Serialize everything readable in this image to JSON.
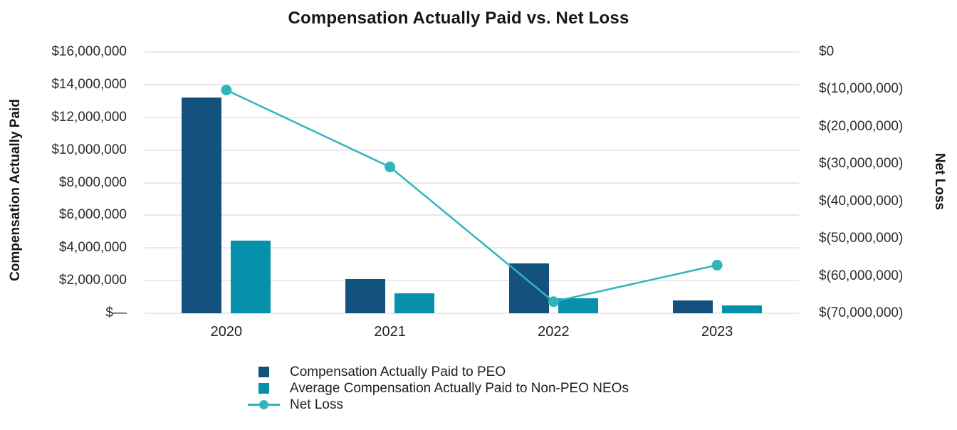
{
  "title": "Compensation Actually Paid vs. Net Loss",
  "colors": {
    "peo_bar": "#14527e",
    "non_peo_bar": "#0590ab",
    "net_loss_line": "#31b5bc",
    "gridline": "#e9e9e9"
  },
  "left_axis": {
    "title": "Compensation Actually Paid",
    "ticks": [
      "$16,000,000",
      "$14,000,000",
      "$12,000,000",
      "$10,000,000",
      "$8,000,000",
      "$6,000,000",
      "$4,000,000",
      "$2,000,000",
      "$—"
    ]
  },
  "right_axis": {
    "title": "Net Loss",
    "ticks": [
      "$0",
      "$(10,000,000)",
      "$(20,000,000)",
      "$(30,000,000)",
      "$(40,000,000)",
      "$(50,000,000)",
      "$(60,000,000)",
      "$(70,000,000)"
    ]
  },
  "legend": {
    "items": [
      {
        "label": "Compensation Actually Paid to PEO",
        "type": "swatch",
        "color": "#14527e"
      },
      {
        "label": "Average Compensation Actually Paid to Non-PEO NEOs",
        "type": "swatch",
        "color": "#0590ab"
      },
      {
        "label": "Net Loss",
        "type": "line",
        "color": "#31b5bc"
      }
    ]
  },
  "chart_data": {
    "type": "bar",
    "subtype": "combo-bar-line-dual-axis",
    "title": "Compensation Actually Paid vs. Net Loss",
    "categories": [
      "2020",
      "2021",
      "2022",
      "2023"
    ],
    "series": [
      {
        "name": "Compensation Actually Paid to PEO",
        "type": "bar",
        "axis": "left",
        "color": "#14527e",
        "values": [
          13200000,
          2100000,
          3050000,
          780000
        ]
      },
      {
        "name": "Average Compensation Actually Paid to Non-PEO NEOs",
        "type": "bar",
        "axis": "left",
        "color": "#0590ab",
        "values": [
          4450000,
          1210000,
          930000,
          500000
        ]
      },
      {
        "name": "Net Loss",
        "type": "line",
        "axis": "right",
        "color": "#31b5bc",
        "values": [
          -10200000,
          -30800000,
          -66900000,
          -57100000
        ]
      }
    ],
    "left_ylabel": "Compensation Actually Paid",
    "right_ylabel": "Net Loss",
    "left_ylim": [
      0,
      16000000
    ],
    "right_ylim": [
      -70000000,
      0
    ],
    "grid": true,
    "legend_position": "bottom-left"
  }
}
